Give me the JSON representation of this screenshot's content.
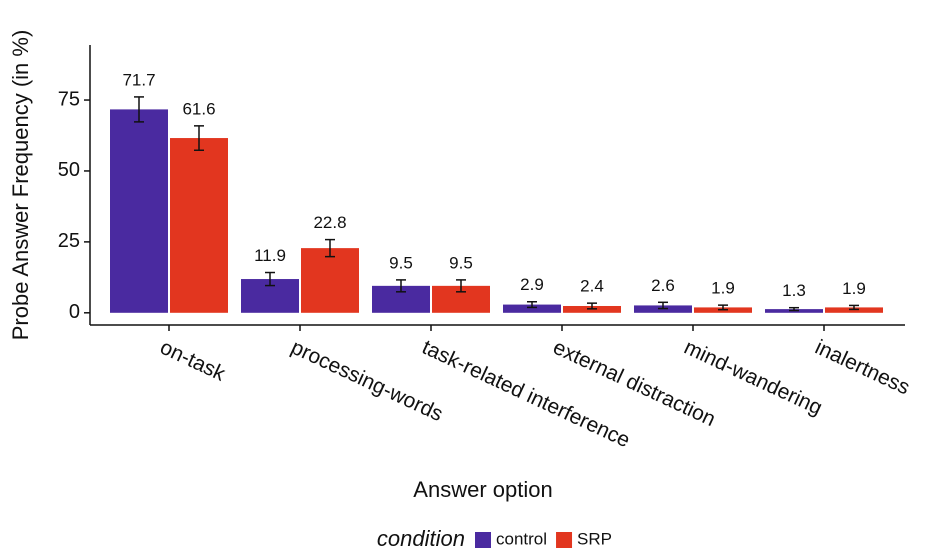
{
  "chart_data": {
    "type": "bar",
    "x_label": "Answer option",
    "y_label": "Probe Answer Frequency (in %)",
    "legend_title": "condition",
    "categories": [
      "on-task",
      "processing-words",
      "task-related interference",
      "external distraction",
      "mind-wandering",
      "inalertness"
    ],
    "series": [
      {
        "name": "control",
        "color": "#4a2aa0",
        "values": [
          71.7,
          11.9,
          9.5,
          2.9,
          2.6,
          1.3
        ],
        "errors": [
          4.4,
          2.3,
          2.1,
          1.0,
          1.1,
          0.5
        ]
      },
      {
        "name": "SRP",
        "color": "#e2361f",
        "values": [
          61.6,
          22.8,
          9.5,
          2.4,
          1.9,
          1.9
        ],
        "errors": [
          4.3,
          3.0,
          2.1,
          1.0,
          0.8,
          0.7
        ]
      }
    ],
    "ylim": [
      -4.3,
      94.4
    ],
    "yticks": [
      0,
      25,
      50,
      75
    ],
    "grid": false,
    "legend": "bottom"
  }
}
